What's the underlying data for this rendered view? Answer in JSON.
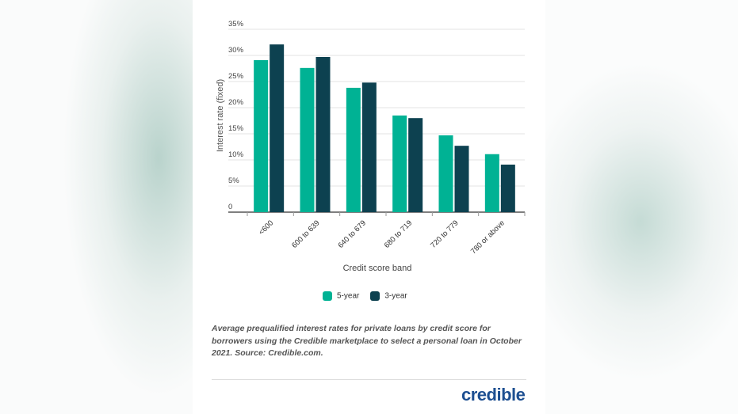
{
  "chart_data": {
    "type": "bar",
    "xlabel": "Credit score band",
    "ylabel": "Interest rate (fixed)",
    "ylim": [
      0,
      35
    ],
    "yticks": [
      "0",
      "5%",
      "10%",
      "15%",
      "20%",
      "25%",
      "30%",
      "35%"
    ],
    "categories": [
      "<600",
      "600 to 639",
      "640 to 679",
      "680 to 719",
      "720 to 779",
      "780 or above"
    ],
    "series": [
      {
        "name": "5-year",
        "color": "#00b294",
        "values": [
          29.1,
          27.6,
          23.8,
          18.5,
          14.7,
          11.1
        ]
      },
      {
        "name": "3-year",
        "color": "#0d4150",
        "values": [
          32.1,
          29.7,
          24.8,
          18.0,
          12.7,
          9.1
        ]
      }
    ],
    "grid": true,
    "legend": "bottom"
  },
  "caption": "Average prequalified interest rates for private loans by credit score for borrowers using the Credible marketplace to select a personal loan in October 2021. Source: Credible.com.",
  "logo": "credible"
}
